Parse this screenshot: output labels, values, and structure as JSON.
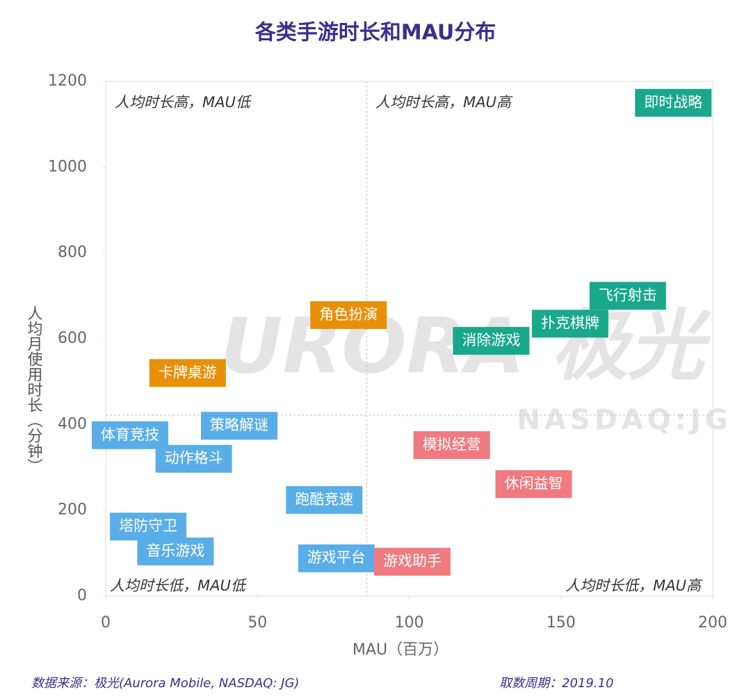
{
  "chart_data": {
    "type": "scatter",
    "title": "各类手游时长和MAU分布",
    "x_label": "MAU（百万）",
    "y_label": "人均月使用时长（分钟）",
    "xlim": [
      0,
      200
    ],
    "xticks": [
      0,
      50,
      100,
      150,
      200
    ],
    "ylim": [
      0,
      1200
    ],
    "yticks": [
      0,
      200,
      400,
      600,
      800,
      1000,
      1200
    ],
    "x_divider": 86,
    "y_divider": 422,
    "quadrants": [
      "人均时长高，MAU低",
      "人均时长高，MAU高",
      "人均时长低，MAU低",
      "人均时长低，MAU高"
    ],
    "points": [
      {
        "label": "即时战略",
        "x": 187,
        "y": 1150,
        "color": "#1aa88a"
      },
      {
        "label": "飞行射击",
        "x": 172,
        "y": 700,
        "color": "#1aa88a"
      },
      {
        "label": "扑克棋牌",
        "x": 153,
        "y": 635,
        "color": "#1aa88a"
      },
      {
        "label": "消除游戏",
        "x": 127,
        "y": 595,
        "color": "#1aa88a"
      },
      {
        "label": "角色扮演",
        "x": 80,
        "y": 655,
        "color": "#e8900a"
      },
      {
        "label": "卡牌桌游",
        "x": 27,
        "y": 520,
        "color": "#e8900a"
      },
      {
        "label": "体育竞技",
        "x": 8,
        "y": 375,
        "color": "#5aaee8"
      },
      {
        "label": "策略解谜",
        "x": 44,
        "y": 397,
        "color": "#5aaee8"
      },
      {
        "label": "动作格斗",
        "x": 29,
        "y": 320,
        "color": "#5aaee8"
      },
      {
        "label": "跑酷竞速",
        "x": 72,
        "y": 224,
        "color": "#5aaee8"
      },
      {
        "label": "塔防守卫",
        "x": 14,
        "y": 162,
        "color": "#5aaee8"
      },
      {
        "label": "音乐游戏",
        "x": 23,
        "y": 104,
        "color": "#5aaee8"
      },
      {
        "label": "游戏平台",
        "x": 76,
        "y": 88,
        "color": "#5aaee8"
      },
      {
        "label": "游戏助手",
        "x": 101,
        "y": 80,
        "color": "#f07a80"
      },
      {
        "label": "模拟经营",
        "x": 114,
        "y": 352,
        "color": "#f07a80"
      },
      {
        "label": "休闲益智",
        "x": 141,
        "y": 261,
        "color": "#f07a80"
      }
    ]
  },
  "watermark": {
    "brand": "URORA 极光",
    "ticker": "NASDAQ:JG"
  },
  "footer": {
    "source": "数据来源：极光(Aurora Mobile, NASDAQ: JG)",
    "period": "取数周期：2019.10"
  }
}
